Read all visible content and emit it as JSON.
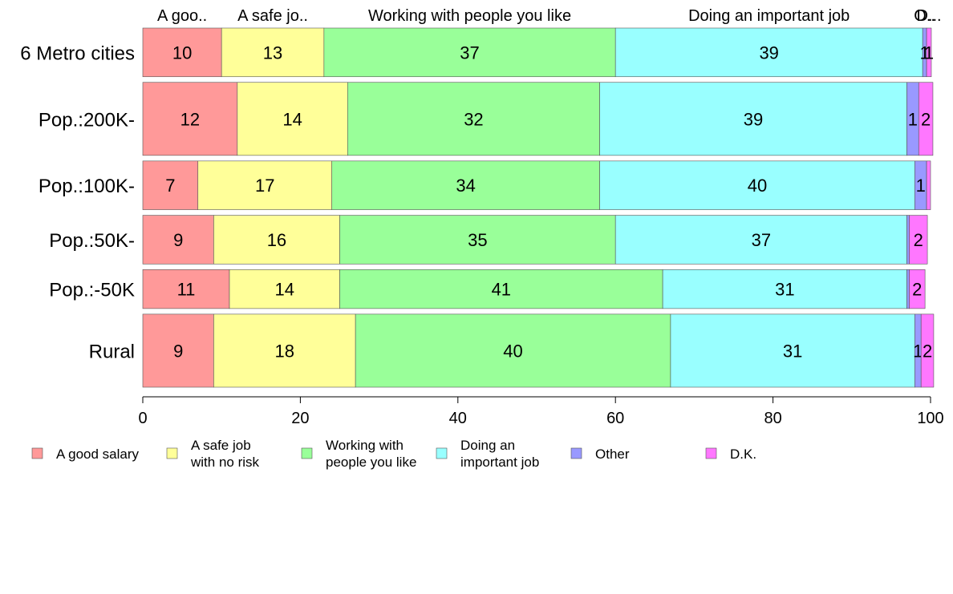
{
  "chart_data": {
    "type": "bar",
    "orientation": "horizontal",
    "stacked": true,
    "categories": [
      "6 Metro cities",
      "Pop.:200K-",
      "Pop.:100K-",
      "Pop.:50K-",
      "Pop.:-50K",
      "Rural"
    ],
    "weights": [
      1,
      1.5,
      1,
      1,
      0.8,
      1.5
    ],
    "top_labels": [
      "A goo..",
      "A safe jo..",
      "Working with people you like",
      "Doing an important job",
      "O..",
      "D..."
    ],
    "series": [
      {
        "name": "A good salary",
        "legend_lines": [
          "A good salary"
        ],
        "color": "#FF9999",
        "values": [
          10,
          12,
          7,
          9,
          11,
          9
        ],
        "labels": [
          "10",
          "12",
          "7",
          "9",
          "11",
          "9"
        ]
      },
      {
        "name": "A safe job with no risk",
        "legend_lines": [
          "A safe job",
          "with no risk"
        ],
        "color": "#FFFF99",
        "values": [
          13,
          14,
          17,
          16,
          14,
          18
        ],
        "labels": [
          "13",
          "14",
          "17",
          "16",
          "14",
          "18"
        ]
      },
      {
        "name": "Working with people you like",
        "legend_lines": [
          "Working with",
          "people you like"
        ],
        "color": "#99FF99",
        "values": [
          37,
          32,
          34,
          35,
          41,
          40
        ],
        "labels": [
          "37",
          "32",
          "34",
          "35",
          "41",
          "40"
        ]
      },
      {
        "name": "Doing an important job",
        "legend_lines": [
          "Doing an",
          "important job"
        ],
        "color": "#99FFFF",
        "values": [
          39,
          39,
          40,
          37,
          31,
          31
        ],
        "labels": [
          "39",
          "39",
          "40",
          "37",
          "31",
          "31"
        ]
      },
      {
        "name": "Other",
        "legend_lines": [
          "Other"
        ],
        "color": "#9999FF",
        "values": [
          0.5,
          1.5,
          1.5,
          0.3,
          0.3,
          0.8
        ],
        "labels": [
          "1",
          "1",
          "1",
          "",
          "",
          "1"
        ]
      },
      {
        "name": "D.K.",
        "legend_lines": [
          "D.K."
        ],
        "color": "#FF77FF",
        "values": [
          0.6,
          1.8,
          0.5,
          2.3,
          2.0,
          1.6
        ],
        "labels": [
          "1",
          "2",
          "",
          "2",
          "2",
          "2"
        ]
      }
    ],
    "xlim": [
      0,
      100
    ],
    "xticks": [
      0,
      20,
      40,
      60,
      80,
      100
    ],
    "xtick_labels": [
      "0",
      "20",
      "40",
      "60",
      "80",
      "100"
    ],
    "legend_position": "bottom",
    "grid": false
  }
}
